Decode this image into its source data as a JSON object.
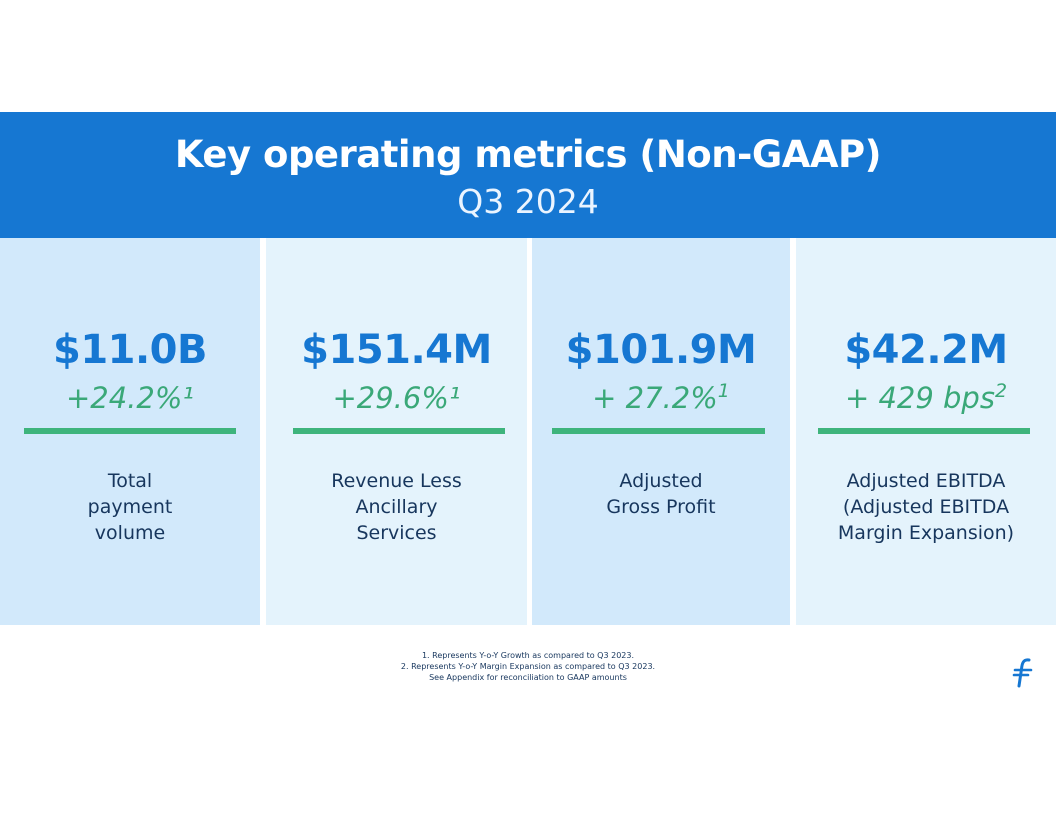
{
  "header": {
    "title": "Key operating metrics (Non-GAAP)",
    "subtitle": "Q3 2024"
  },
  "metrics": [
    {
      "value": "$11.0B",
      "growth": "+24.2%¹",
      "growth_sup": "",
      "label_lines": [
        "Total",
        "payment",
        "volume"
      ]
    },
    {
      "value": "$151.4M",
      "growth": "+29.6%¹",
      "growth_sup": "",
      "label_lines": [
        "Revenue Less",
        "Ancillary",
        "Services"
      ]
    },
    {
      "value": "$101.9M",
      "growth": "+ 27.2%",
      "growth_sup": "1",
      "label_lines": [
        "Adjusted",
        "Gross Profit"
      ]
    },
    {
      "value": "$42.2M",
      "growth": "+ 429 bps",
      "growth_sup": "2",
      "label_lines": [
        "Adjusted EBITDA",
        "(Adjusted EBITDA",
        "Margin Expansion)"
      ]
    }
  ],
  "footnotes": [
    "1. Represents Y-o-Y Growth as compared to Q3 2023.",
    "2. Represents Y-o-Y Margin Expansion as compared to Q3 2023.",
    "See Appendix for reconciliation to GAAP amounts"
  ],
  "colors": {
    "header_bg": "#1677d2",
    "value_blue": "#1677d2",
    "growth_green": "#3aa878",
    "rule_green": "#3eb47c",
    "panel_dark": "#d2e9fb",
    "panel_light": "#e4f3fc",
    "label_navy": "#17365d"
  },
  "logo": {
    "icon": "company-logo-icon"
  }
}
